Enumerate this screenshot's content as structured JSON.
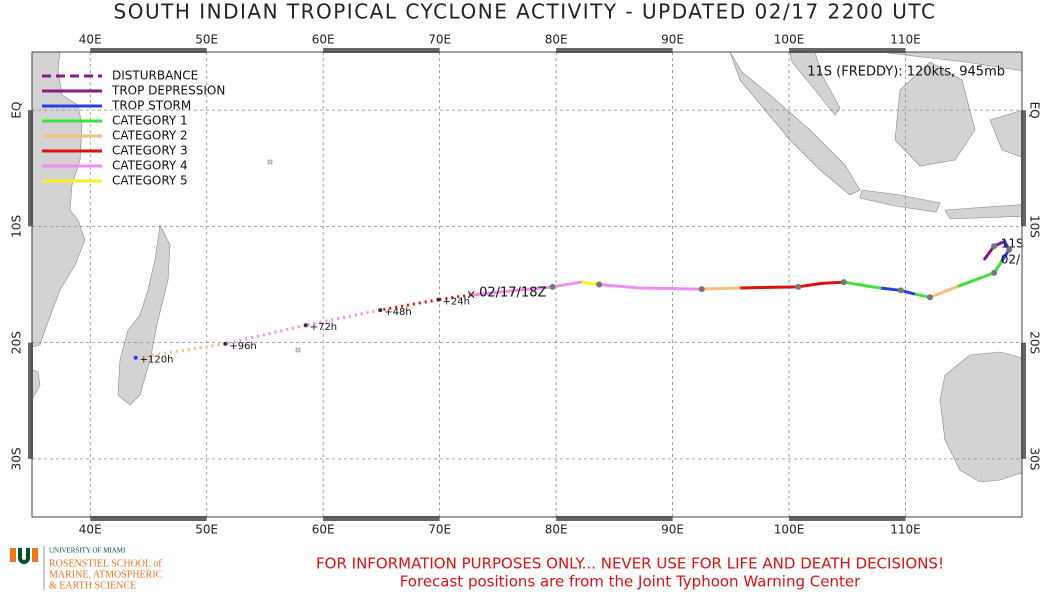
{
  "title": "SOUTH INDIAN TROPICAL CYCLONE ACTIVITY - UPDATED 02/17 2200 UTC",
  "map": {
    "lon_range": [
      35,
      120
    ],
    "lat_range": [
      -35,
      5
    ],
    "lon_ticks": [
      {
        "value": 40,
        "label": "40E"
      },
      {
        "value": 50,
        "label": "50E"
      },
      {
        "value": 60,
        "label": "60E"
      },
      {
        "value": 70,
        "label": "70E"
      },
      {
        "value": 80,
        "label": "80E"
      },
      {
        "value": 90,
        "label": "90E"
      },
      {
        "value": 100,
        "label": "100E"
      },
      {
        "value": 110,
        "label": "110E"
      }
    ],
    "lat_ticks": [
      {
        "value": 0,
        "label": "EQ"
      },
      {
        "value": -10,
        "label": "10S"
      },
      {
        "value": -20,
        "label": "20S"
      },
      {
        "value": -30,
        "label": "30S"
      }
    ],
    "grid": true
  },
  "legend": [
    {
      "label": "DISTURBANCE",
      "color": "#8a1a8a",
      "dashed": true
    },
    {
      "label": "TROP DEPRESSION",
      "color": "#8a1a8a",
      "dashed": false
    },
    {
      "label": "TROP STORM",
      "color": "#2b3fe0",
      "dashed": false
    },
    {
      "label": "CATEGORY 1",
      "color": "#3ee03e",
      "dashed": false
    },
    {
      "label": "CATEGORY 2",
      "color": "#f5c07a",
      "dashed": false
    },
    {
      "label": "CATEGORY 3",
      "color": "#e01010",
      "dashed": false
    },
    {
      "label": "CATEGORY 4",
      "color": "#f08ef0",
      "dashed": false
    },
    {
      "label": "CATEGORY 5",
      "color": "#f5f51a",
      "dashed": false
    }
  ],
  "storm_info": "11S (FREDDY): 120kts, 945mb",
  "storm_id": "11S",
  "storm_start_date": "02/",
  "track": [
    {
      "lon": 116.8,
      "lat": -12.8,
      "category": 1
    },
    {
      "lon": 117.6,
      "lat": -11.7,
      "category": 1
    },
    {
      "lon": 118.5,
      "lat": -11.3,
      "category": 1
    },
    {
      "lon": 118.9,
      "lat": -12.0,
      "category": 2
    },
    {
      "lon": 118.2,
      "lat": -13.1,
      "category": 2
    },
    {
      "lon": 117.6,
      "lat": -14.0,
      "category": 3
    },
    {
      "lon": 114.4,
      "lat": -15.2,
      "category": 3
    },
    {
      "lon": 112.1,
      "lat": -16.1,
      "category": 4
    },
    {
      "lon": 110.7,
      "lat": -15.8,
      "category": 3
    },
    {
      "lon": 109.6,
      "lat": -15.5,
      "category": 2
    },
    {
      "lon": 107.8,
      "lat": -15.3,
      "category": 2
    },
    {
      "lon": 104.7,
      "lat": -14.8,
      "category": 3
    },
    {
      "lon": 102.8,
      "lat": -14.9,
      "category": 5
    },
    {
      "lon": 100.8,
      "lat": -15.2,
      "category": 5
    },
    {
      "lon": 95.7,
      "lat": -15.3,
      "category": 5
    },
    {
      "lon": 92.5,
      "lat": -15.4,
      "category": 4
    },
    {
      "lon": 87.1,
      "lat": -15.3,
      "category": 6
    },
    {
      "lon": 83.7,
      "lat": -15.0,
      "category": 6
    },
    {
      "lon": 82.1,
      "lat": -14.8,
      "category": 7
    },
    {
      "lon": 79.7,
      "lat": -15.2,
      "category": 6
    },
    {
      "lon": 72.7,
      "lat": -15.9,
      "category": 6
    }
  ],
  "current_label": "02/17/18Z",
  "forecast": [
    {
      "lon": 69.9,
      "lat": -16.3,
      "category": 5,
      "label": "+24h"
    },
    {
      "lon": 64.9,
      "lat": -17.2,
      "category": 5,
      "label": "+48h"
    },
    {
      "lon": 58.5,
      "lat": -18.5,
      "category": 6,
      "label": "+72h"
    },
    {
      "lon": 51.6,
      "lat": -20.1,
      "category": 6,
      "label": "+96h"
    },
    {
      "lon": 43.9,
      "lat": -21.3,
      "category": 4,
      "label": "+120h"
    }
  ],
  "footer": {
    "university": [
      "UNIVERSITY OF MIAMI",
      "ROSENSTIEL SCHOOL of",
      "MARINE, ATMOSPHERIC",
      "& EARTH SCIENCE"
    ],
    "disclaimer": [
      "FOR INFORMATION PURPOSES ONLY... NEVER USE FOR LIFE AND DEATH DECISIONS!",
      "Forecast positions are from the Joint Typhoon Warning Center"
    ]
  }
}
